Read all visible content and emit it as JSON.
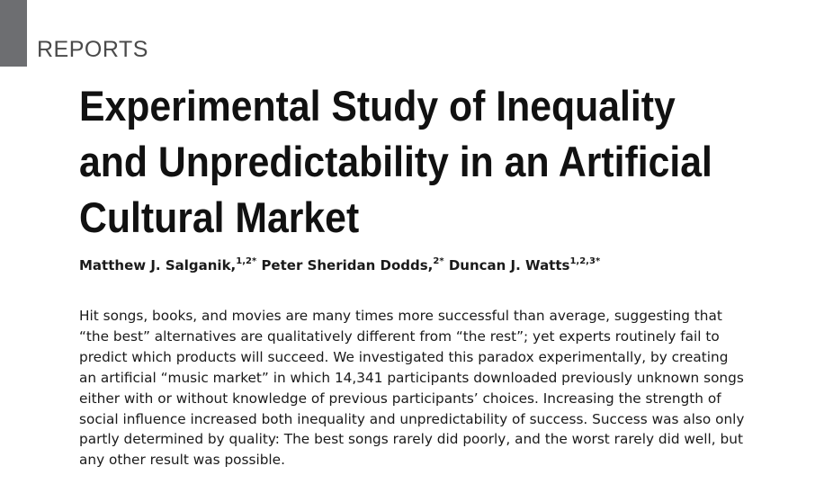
{
  "section": {
    "label": "REPORTS"
  },
  "article": {
    "title": "Experimental Study of Inequality and Unpredictability in an Artificial Cultural Market",
    "authors": [
      {
        "name": "Matthew J. Salganik,",
        "affiliation": "1,2",
        "mark": "*"
      },
      {
        "name": "Peter Sheridan Dodds,",
        "affiliation": "2",
        "mark": "*"
      },
      {
        "name": "Duncan J. Watts",
        "affiliation": "1,2,3",
        "mark": "*"
      }
    ],
    "abstract": "Hit songs, books, and movies are many times more successful than average, suggesting that\n“the best” alternatives are qualitatively different from “the rest”; yet experts routinely fail to\npredict which products will succeed. We investigated this paradox experimentally, by creating\nan artificial “music market” in which 14,341 participants downloaded previously unknown songs\neither with or without knowledge of previous participants’ choices. Increasing the strength of\nsocial influence increased both inequality and unpredictability of success. Success was also only\npartly determined by quality: The best songs rarely did poorly, and the worst rarely did well, but\nany other result was possible."
  }
}
